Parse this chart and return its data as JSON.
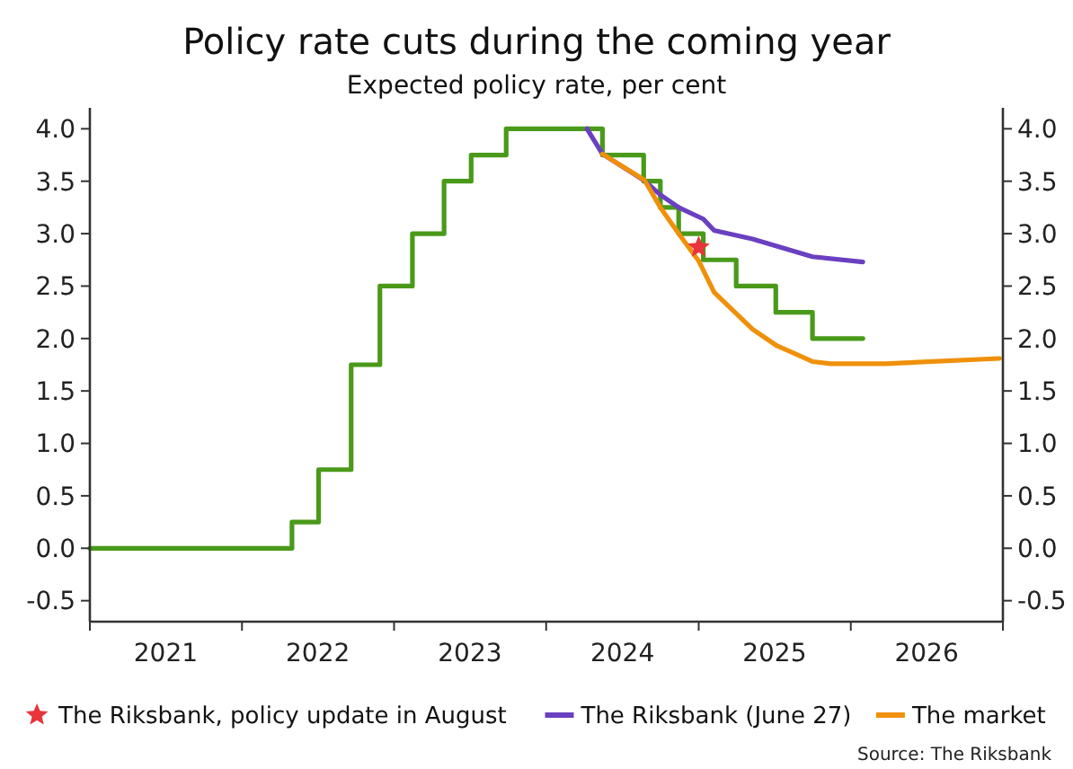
{
  "chart_data": {
    "type": "line",
    "title": "Policy rate cuts during the coming year",
    "subtitle": "Expected policy rate, per cent",
    "annotations": [
      "Source: The Riksbank"
    ],
    "xlim": [
      "2021-01-01",
      "2027-01-01"
    ],
    "xticks": [
      {
        "value": "2021-01-01",
        "label": null
      },
      {
        "value": "2022-01-01",
        "label": null
      },
      {
        "value": "2023-01-01",
        "label": null
      },
      {
        "value": "2024-01-01",
        "label": null
      },
      {
        "value": "2025-01-01",
        "label": null
      },
      {
        "value": "2026-01-01",
        "label": null
      },
      {
        "value": "2027-01-01",
        "label": null
      },
      {
        "value": "2021-07-02",
        "label": "2021"
      },
      {
        "value": "2022-07-02",
        "label": "2022"
      },
      {
        "value": "2023-07-02",
        "label": "2023"
      },
      {
        "value": "2024-07-02",
        "label": "2024"
      },
      {
        "value": "2025-07-02",
        "label": "2025"
      },
      {
        "value": "2026-07-02",
        "label": "2026"
      }
    ],
    "ylim": [
      -0.7,
      4.2
    ],
    "yticks": [
      {
        "value": -0.5,
        "label": "-0.5"
      },
      {
        "value": 0,
        "label": "0.0"
      },
      {
        "value": 0.5,
        "label": "0.5"
      },
      {
        "value": 1,
        "label": "1.0"
      },
      {
        "value": 1.5,
        "label": "1.5"
      },
      {
        "value": 2,
        "label": "2.0"
      },
      {
        "value": 2.5,
        "label": "2.5"
      },
      {
        "value": 3,
        "label": "3.0"
      },
      {
        "value": 3.5,
        "label": "3.5"
      },
      {
        "value": 4,
        "label": "4.0"
      }
    ],
    "y2lim": [
      -0.7,
      4.2
    ],
    "y2ticks": [
      {
        "value": -0.5,
        "label": "-0.5"
      },
      {
        "value": 0,
        "label": "0.0"
      },
      {
        "value": 0.5,
        "label": "0.5"
      },
      {
        "value": 1,
        "label": "1.0"
      },
      {
        "value": 1.5,
        "label": "1.5"
      },
      {
        "value": 2,
        "label": "2.0"
      },
      {
        "value": 2.5,
        "label": "2.5"
      },
      {
        "value": 3,
        "label": "3.0"
      },
      {
        "value": 3.5,
        "label": "3.5"
      },
      {
        "value": 4,
        "label": "4.0"
      }
    ],
    "grid": false,
    "legend": "bottom",
    "series": [
      {
        "type": "step",
        "color": "#4a9a1a",
        "x": [
          "2021-01-01",
          "2022-05-01",
          "2022-07-04",
          "2022-09-20",
          "2022-11-28",
          "2023-02-14",
          "2023-05-01",
          "2023-07-05",
          "2023-09-27",
          "2024-05-15",
          "2024-08-22",
          "2024-10-01",
          "2024-11-14",
          "2025-01-12",
          "2025-04-01",
          "2025-07-05",
          "2025-10-01",
          "2026-01-30"
        ],
        "values": [
          0,
          0.25,
          0.75,
          1.75,
          2.5,
          3.0,
          3.5,
          3.75,
          4.0,
          3.75,
          3.5,
          3.25,
          3.0,
          2.75,
          2.5,
          2.25,
          2.0,
          2.0
        ]
      },
      {
        "type": "line",
        "name": "The Riksbank (June 27)",
        "color": "#6a3fc0",
        "x": [
          "2024-04-08",
          "2024-05-15",
          "2024-08-22",
          "2024-10-01",
          "2024-11-14",
          "2025-01-12",
          "2025-02-07",
          "2025-05-10",
          "2025-10-01",
          "2026-01-30"
        ],
        "values": [
          4.0,
          3.76,
          3.51,
          3.37,
          3.25,
          3.14,
          3.03,
          2.95,
          2.78,
          2.73
        ]
      },
      {
        "type": "line",
        "name": "The market",
        "color": "#f0900a",
        "x": [
          "2024-05-15",
          "2024-08-24",
          "2024-10-01",
          "2024-11-14",
          "2025-01-01",
          "2025-02-07",
          "2025-05-10",
          "2025-07-08",
          "2025-10-01",
          "2025-11-14",
          "2026-03-25",
          "2026-12-24"
        ],
        "values": [
          3.76,
          3.51,
          3.25,
          3.0,
          2.74,
          2.44,
          2.09,
          1.93,
          1.78,
          1.76,
          1.76,
          1.81
        ]
      },
      {
        "type": "scatter",
        "name": "The Riksbank, policy update in August",
        "color": "#e8343a",
        "marker": "star",
        "x": [
          "2025-01-01"
        ],
        "values": [
          2.87
        ]
      }
    ]
  }
}
